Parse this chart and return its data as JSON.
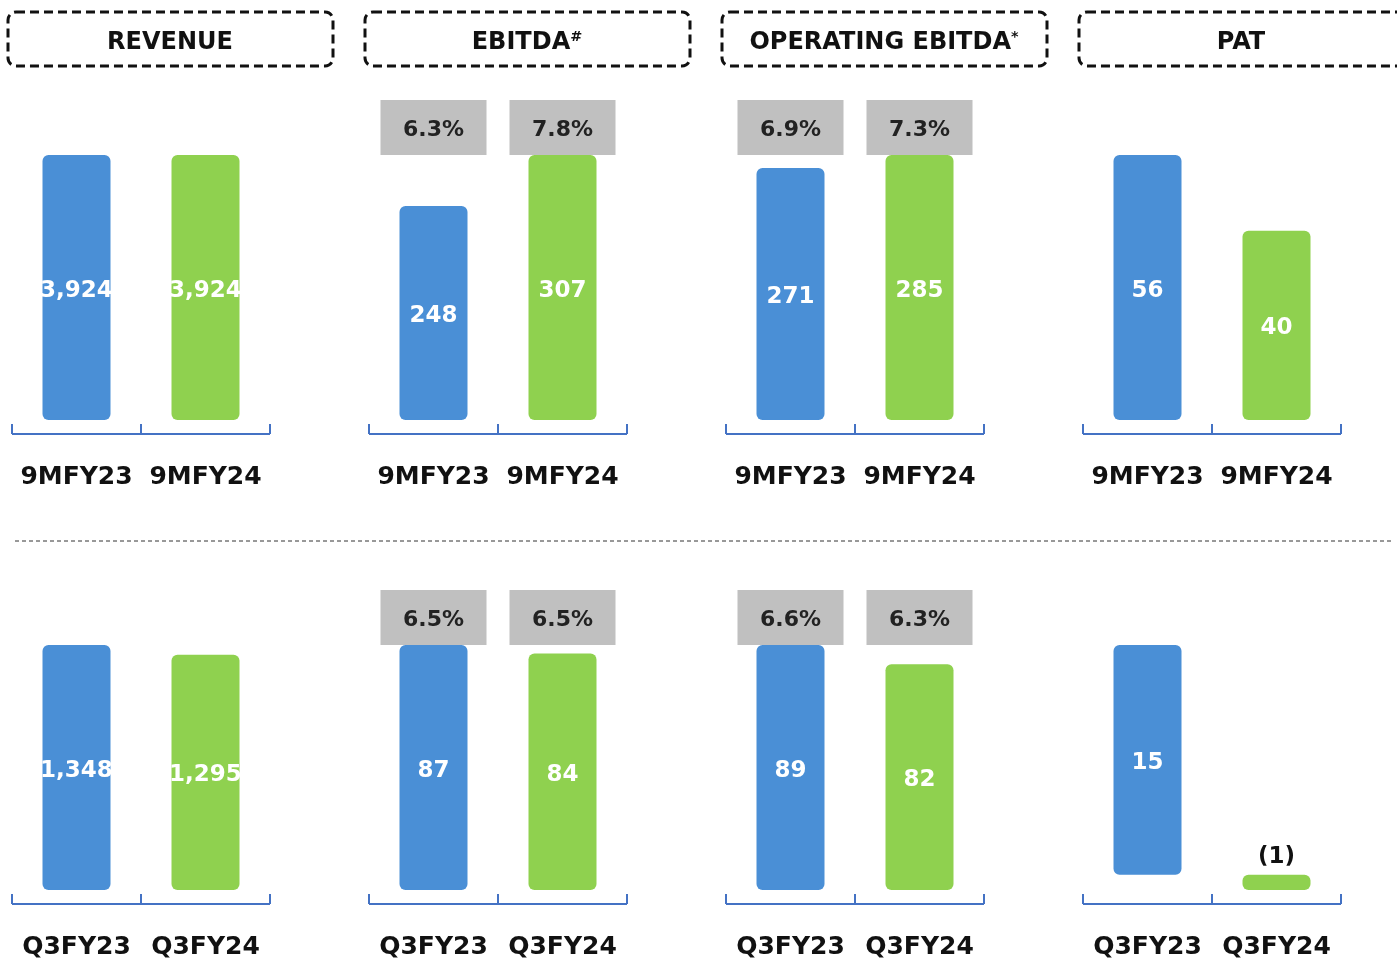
{
  "chart_data": [
    {
      "type": "bar",
      "title": "REVENUE",
      "categories": [
        "9MFY23",
        "9MFY24"
      ],
      "values": [
        3924,
        3924
      ],
      "colors": [
        "#4a8fd6",
        "#8fd14f"
      ],
      "value_labels": [
        "3,924",
        "3,924"
      ]
    },
    {
      "type": "bar",
      "title": "EBITDA$^{#}$",
      "categories": [
        "9MFY23",
        "9MFY24"
      ],
      "values": [
        248,
        307
      ],
      "colors": [
        "#4a8fd6",
        "#8fd14f"
      ],
      "value_labels": [
        "248",
        "307"
      ],
      "annotations": [
        "6.3%",
        "7.8%"
      ]
    },
    {
      "type": "bar",
      "title": "OPERATING EBITDA$^{*}$",
      "categories": [
        "9MFY23",
        "9MFY24"
      ],
      "values": [
        271,
        285
      ],
      "colors": [
        "#4a8fd6",
        "#8fd14f"
      ],
      "value_labels": [
        "271",
        "285"
      ],
      "annotations": [
        "6.9%",
        "7.3%"
      ]
    },
    {
      "type": "bar",
      "title": "PAT",
      "categories": [
        "9MFY23",
        "9MFY24"
      ],
      "values": [
        56,
        40
      ],
      "colors": [
        "#4a8fd6",
        "#8fd14f"
      ],
      "value_labels": [
        "56",
        "40"
      ]
    },
    {
      "type": "bar",
      "categories": [
        "Q3FY23",
        "Q3FY24"
      ],
      "values": [
        1348,
        1295
      ],
      "colors": [
        "#4a8fd6",
        "#8fd14f"
      ],
      "value_labels": [
        "1,348",
        "1,295"
      ]
    },
    {
      "type": "bar",
      "categories": [
        "Q3FY23",
        "Q3FY24"
      ],
      "values": [
        87,
        84
      ],
      "colors": [
        "#4a8fd6",
        "#8fd14f"
      ],
      "value_labels": [
        "87",
        "84"
      ],
      "annotations": [
        "6.5%",
        "6.5%"
      ]
    },
    {
      "type": "bar",
      "categories": [
        "Q3FY23",
        "Q3FY24"
      ],
      "values": [
        89,
        82
      ],
      "colors": [
        "#4a8fd6",
        "#8fd14f"
      ],
      "value_labels": [
        "89",
        "82"
      ],
      "annotations": [
        "6.6%",
        "6.3%"
      ]
    },
    {
      "type": "bar",
      "categories": [
        "Q3FY23",
        "Q3FY24"
      ],
      "values": [
        15,
        -1
      ],
      "colors": [
        "#4a8fd6",
        "#8fd14f"
      ],
      "value_labels": [
        "15",
        "(1)"
      ]
    }
  ]
}
